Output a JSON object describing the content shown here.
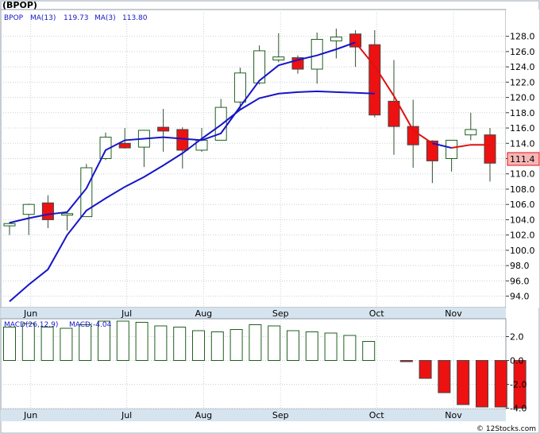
{
  "chart_data": {
    "type": "candlestick",
    "ticker_label": "(BPOP)",
    "legend": {
      "symbol": "BPOP",
      "ma13_label": "MA(13)",
      "ma13_value": "119.73",
      "ma3_label": "MA(3)",
      "ma3_value": "113.80"
    },
    "price_axis": {
      "ylim": [
        92.5,
        131.5
      ],
      "ticks": [
        "94.0",
        "96.0",
        "98.0",
        "100.0",
        "102.0",
        "104.0",
        "106.0",
        "108.0",
        "110.0",
        "112.0",
        "114.0",
        "116.0",
        "118.0",
        "120.0",
        "122.0",
        "124.0",
        "126.0",
        "128.0"
      ]
    },
    "last_price_label": "111.4",
    "months": [
      "Jun",
      "Jul",
      "Aug",
      "Sep",
      "Oct",
      "Nov"
    ],
    "candles": [
      {
        "open": 103.2,
        "high": 103.7,
        "low": 102.0,
        "close": 103.5
      },
      {
        "open": 104.7,
        "high": 106.1,
        "low": 102.0,
        "close": 106.0
      },
      {
        "open": 106.2,
        "high": 107.2,
        "low": 102.9,
        "close": 104.0
      },
      {
        "open": 104.6,
        "high": 104.9,
        "low": 102.6,
        "close": 104.8
      },
      {
        "open": 104.4,
        "high": 111.3,
        "low": 104.4,
        "close": 110.8
      },
      {
        "open": 112.0,
        "high": 115.4,
        "low": 111.8,
        "close": 114.8
      },
      {
        "open": 114.0,
        "high": 116.0,
        "low": 113.3,
        "close": 113.4
      },
      {
        "open": 113.5,
        "high": 115.7,
        "low": 110.9,
        "close": 115.7
      },
      {
        "open": 116.1,
        "high": 118.5,
        "low": 112.9,
        "close": 115.6
      },
      {
        "open": 115.8,
        "high": 116.1,
        "low": 110.7,
        "close": 113.1
      },
      {
        "open": 113.1,
        "high": 116.0,
        "low": 112.9,
        "close": 114.4
      },
      {
        "open": 114.4,
        "high": 119.8,
        "low": 114.4,
        "close": 118.7
      },
      {
        "open": 119.4,
        "high": 123.9,
        "low": 118.4,
        "close": 123.2
      },
      {
        "open": 121.9,
        "high": 126.8,
        "low": 121.7,
        "close": 126.1
      },
      {
        "open": 124.9,
        "high": 128.4,
        "low": 124.6,
        "close": 125.3
      },
      {
        "open": 125.2,
        "high": 125.5,
        "low": 123.1,
        "close": 123.7
      },
      {
        "open": 123.7,
        "high": 128.5,
        "low": 121.8,
        "close": 127.6
      },
      {
        "open": 127.4,
        "high": 129.0,
        "low": 125.1,
        "close": 127.9
      },
      {
        "open": 128.3,
        "high": 128.8,
        "low": 124.0,
        "close": 126.6
      },
      {
        "open": 126.9,
        "high": 128.8,
        "low": 117.4,
        "close": 117.7
      },
      {
        "open": 119.5,
        "high": 124.9,
        "low": 112.5,
        "close": 116.2
      },
      {
        "open": 116.2,
        "high": 119.7,
        "low": 110.8,
        "close": 113.8
      },
      {
        "open": 114.3,
        "high": 114.4,
        "low": 108.8,
        "close": 111.7
      },
      {
        "open": 112.0,
        "high": 114.4,
        "low": 110.3,
        "close": 114.4
      },
      {
        "open": 115.1,
        "high": 118.0,
        "low": 114.4,
        "close": 115.8
      },
      {
        "open": 115.1,
        "high": 116.0,
        "low": 109.0,
        "close": 111.4
      }
    ],
    "ma13": [
      93.3,
      null,
      95.5,
      null,
      97.5,
      null,
      102.0,
      null,
      105.2,
      null,
      106.8,
      null,
      108.3,
      null,
      109.6,
      null,
      111.1,
      null,
      112.7,
      null,
      114.6,
      null,
      116.4,
      null,
      118.4,
      null,
      119.9,
      null,
      120.5,
      null,
      120.7,
      null,
      120.8,
      null,
      120.7,
      null,
      120.6,
      null,
      120.5,
      null,
      119.8
    ],
    "ma3": [
      103.6,
      104.2,
      104.7,
      105.0,
      108.1,
      113.1,
      114.4,
      114.6,
      114.8,
      114.6,
      114.4,
      115.3,
      118.8,
      122.2,
      124.2,
      124.9,
      125.5,
      126.3,
      127.2,
      124.1,
      120.2,
      115.7,
      114.0,
      113.4,
      113.8,
      113.8
    ],
    "macd": {
      "label": "MACD(26,12,9)",
      "value_label": "MACD:-4.04",
      "ylim": [
        -4.1,
        3.5
      ],
      "ticks": [
        "2.0",
        "0.0",
        "-2.0",
        "-4.0"
      ],
      "values": [
        2.8,
        3.1,
        2.8,
        2.7,
        3.0,
        3.3,
        3.3,
        3.2,
        2.9,
        2.8,
        2.5,
        2.4,
        2.6,
        3.0,
        2.9,
        2.5,
        2.4,
        2.3,
        2.1,
        1.6,
        null,
        -0.1,
        -1.5,
        -2.7,
        -3.7,
        -3.9,
        -3.9,
        -4.0
      ],
      "value_axis_months": [
        "Jun",
        "Jul",
        "Aug",
        "Sep",
        "Oct",
        "Nov"
      ]
    }
  },
  "watermark": "© 12Stocks.com"
}
